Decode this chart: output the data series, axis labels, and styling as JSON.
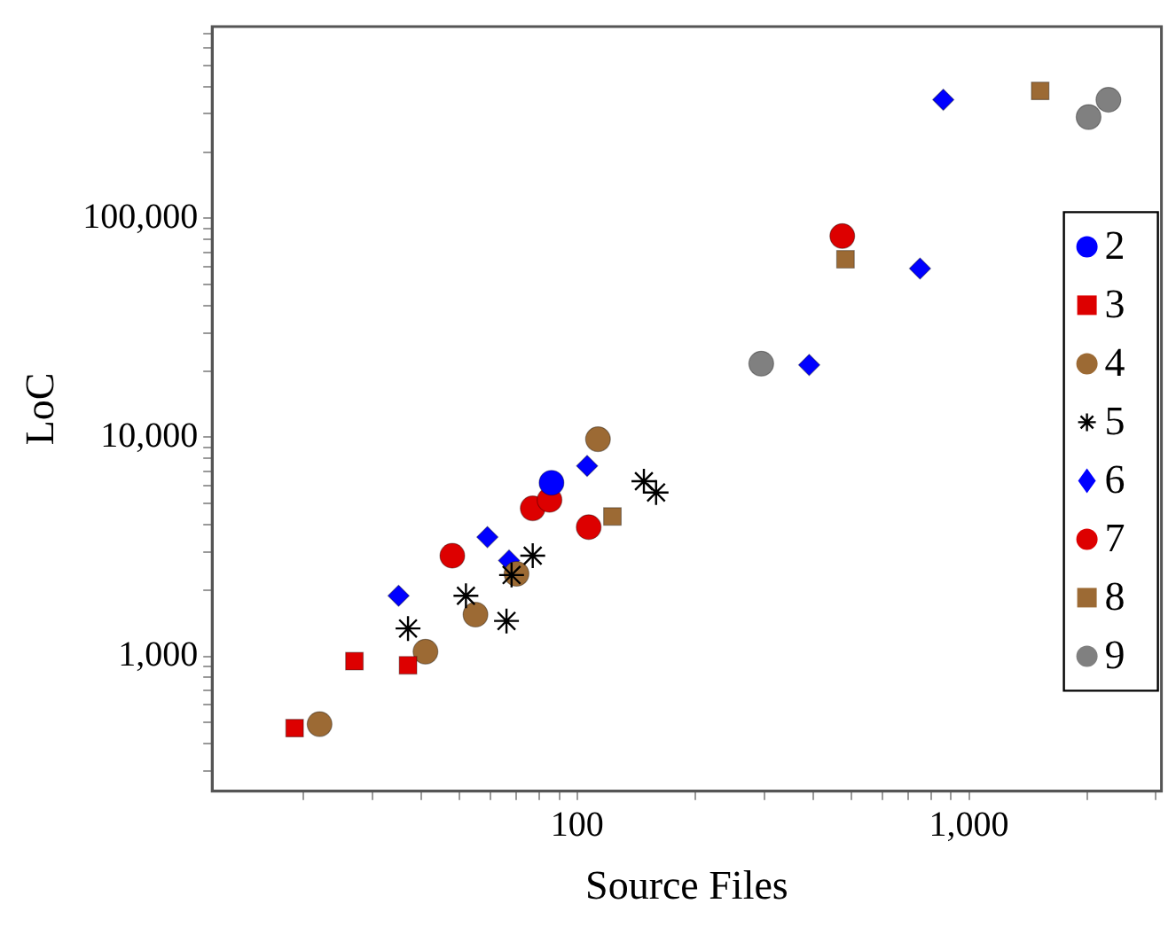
{
  "chart_data": {
    "type": "scatter",
    "xlabel": "Source Files",
    "ylabel": "LoC",
    "log": "xy",
    "grid": false,
    "legend": "right",
    "xlim": [
      11.7,
      3100
    ],
    "ylim": [
      242,
      751000
    ],
    "xticks": [
      {
        "value": 20,
        "label": null
      },
      {
        "value": 30,
        "label": null
      },
      {
        "value": 40,
        "label": null
      },
      {
        "value": 50,
        "label": null
      },
      {
        "value": 60,
        "label": null
      },
      {
        "value": 70,
        "label": null
      },
      {
        "value": 80,
        "label": null
      },
      {
        "value": 90,
        "label": null
      },
      {
        "value": 100,
        "label": "100"
      },
      {
        "value": 200,
        "label": null
      },
      {
        "value": 300,
        "label": null
      },
      {
        "value": 400,
        "label": null
      },
      {
        "value": 500,
        "label": null
      },
      {
        "value": 600,
        "label": null
      },
      {
        "value": 700,
        "label": null
      },
      {
        "value": 800,
        "label": null
      },
      {
        "value": 900,
        "label": null
      },
      {
        "value": 1000,
        "label": "1,000"
      },
      {
        "value": 2000,
        "label": null
      },
      {
        "value": 3000,
        "label": null
      }
    ],
    "yticks": [
      {
        "value": 300,
        "label": null
      },
      {
        "value": 400,
        "label": null
      },
      {
        "value": 500,
        "label": null
      },
      {
        "value": 600,
        "label": null
      },
      {
        "value": 700,
        "label": null
      },
      {
        "value": 800,
        "label": null
      },
      {
        "value": 900,
        "label": null
      },
      {
        "value": 1000,
        "label": "1,000"
      },
      {
        "value": 2000,
        "label": null
      },
      {
        "value": 3000,
        "label": null
      },
      {
        "value": 4000,
        "label": null
      },
      {
        "value": 5000,
        "label": null
      },
      {
        "value": 6000,
        "label": null
      },
      {
        "value": 7000,
        "label": null
      },
      {
        "value": 8000,
        "label": null
      },
      {
        "value": 9000,
        "label": null
      },
      {
        "value": 10000,
        "label": "10,000"
      },
      {
        "value": 20000,
        "label": null
      },
      {
        "value": 30000,
        "label": null
      },
      {
        "value": 40000,
        "label": null
      },
      {
        "value": 50000,
        "label": null
      },
      {
        "value": 60000,
        "label": null
      },
      {
        "value": 70000,
        "label": null
      },
      {
        "value": 80000,
        "label": null
      },
      {
        "value": 90000,
        "label": null
      },
      {
        "value": 100000,
        "label": "100,000"
      },
      {
        "value": 200000,
        "label": null
      },
      {
        "value": 300000,
        "label": null
      },
      {
        "value": 400000,
        "label": null
      },
      {
        "value": 500000,
        "label": null
      },
      {
        "value": 600000,
        "label": null
      },
      {
        "value": 700000,
        "label": null
      }
    ],
    "series": [
      {
        "name": "2",
        "color": "#0000ff",
        "marker": "circle",
        "x": [
          86
        ],
        "values": [
          6200
        ]
      },
      {
        "name": "3",
        "color": "#dd0000",
        "marker": "square",
        "x": [
          19,
          27,
          37
        ],
        "values": [
          470,
          950,
          910
        ]
      },
      {
        "name": "4",
        "color": "#9c6a34",
        "marker": "circle",
        "x": [
          22,
          41,
          55,
          70,
          113
        ],
        "values": [
          490,
          1050,
          1550,
          2380,
          9800
        ]
      },
      {
        "name": "5",
        "color": "#000000",
        "marker": "cross",
        "x": [
          37,
          52,
          66,
          68,
          77,
          148,
          159
        ],
        "values": [
          1340,
          1890,
          1450,
          2350,
          2880,
          6300,
          5600
        ]
      },
      {
        "name": "6",
        "color": "#0000ff",
        "marker": "diamond",
        "x": [
          35,
          59,
          67,
          106,
          391,
          750,
          860
        ],
        "values": [
          1890,
          3500,
          2740,
          7400,
          21400,
          59000,
          348000
        ]
      },
      {
        "name": "7",
        "color": "#dd0000",
        "marker": "circle",
        "x": [
          48,
          77,
          85,
          107,
          475
        ],
        "values": [
          2880,
          4740,
          5180,
          3890,
          83000
        ]
      },
      {
        "name": "8",
        "color": "#9c6a34",
        "marker": "square",
        "x": [
          123,
          484,
          1520
        ],
        "values": [
          4350,
          65000,
          382000
        ]
      },
      {
        "name": "9",
        "color": "#808080",
        "marker": "circle",
        "x": [
          295,
          2020,
          2270
        ],
        "values": [
          21700,
          290000,
          348000
        ]
      }
    ]
  }
}
